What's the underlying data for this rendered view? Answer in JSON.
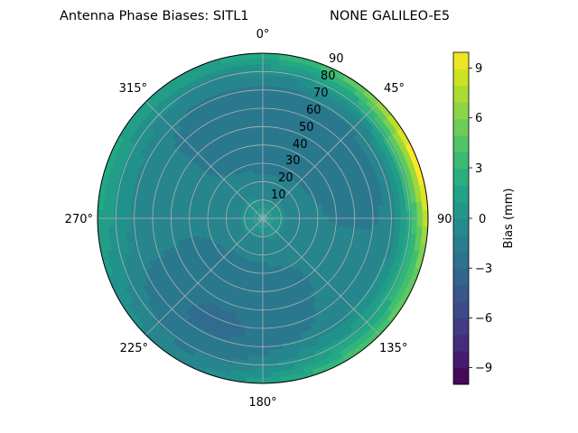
{
  "chart_data": {
    "type": "heatmap",
    "projection": "polar",
    "title_left": "Antenna Phase Biases: SITL1",
    "title_right": "NONE GALILEO-E5",
    "theta_zero_location": "top",
    "theta_direction": "clockwise",
    "angular_tick_labels": [
      "0°",
      "45°",
      "90°",
      "135°",
      "180°",
      "225°",
      "270°",
      "315°"
    ],
    "radial_tick_labels": [
      "10",
      "20",
      "30",
      "40",
      "50",
      "60",
      "70",
      "80",
      "90"
    ],
    "rlim": [
      0,
      90
    ],
    "grid": true,
    "colorbar": {
      "label": "Bias (mm)",
      "colormap": "viridis",
      "range": [
        -10,
        10
      ],
      "levels": 21,
      "tick_labels": [
        "−9",
        "−6",
        "−3",
        "0",
        "3",
        "6",
        "9"
      ]
    }
  }
}
